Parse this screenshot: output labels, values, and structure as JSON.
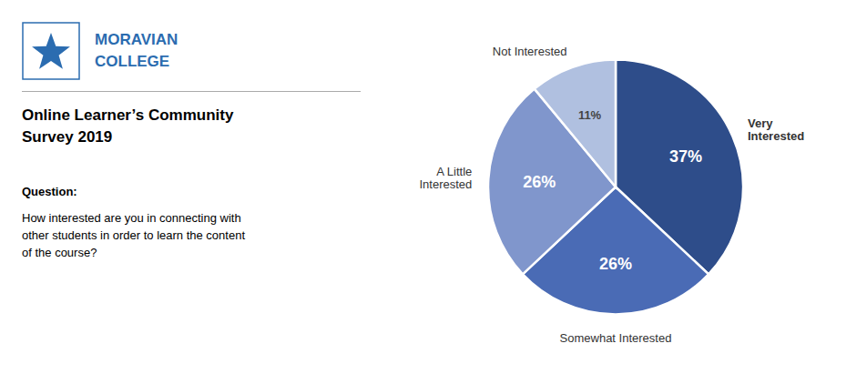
{
  "chart_data": {
    "type": "pie",
    "title": "Online Learner’s Community\nSurvey 2019",
    "annotations": [
      {
        "text": "MORAVIAN",
        "color": "#2B6CB0"
      },
      {
        "text": "COLLEGE",
        "color": "#2B6CB0"
      },
      {
        "text": "Question:"
      },
      {
        "text": "How interested are you in connecting with\nother students in order to learn the content\nof the course?"
      }
    ],
    "categories": [
      "Very\nInterested",
      "Somewhat Interested",
      "A Little\nInterested",
      "Not Interested"
    ],
    "values": [
      37,
      26,
      26,
      11
    ],
    "value_labels": [
      "37%",
      "26%",
      "26%",
      "11%"
    ],
    "colors": [
      "#2E4D8A",
      "#4A6BB5",
      "#8096CC",
      "#B0C0E0"
    ],
    "data_labels": true
  }
}
